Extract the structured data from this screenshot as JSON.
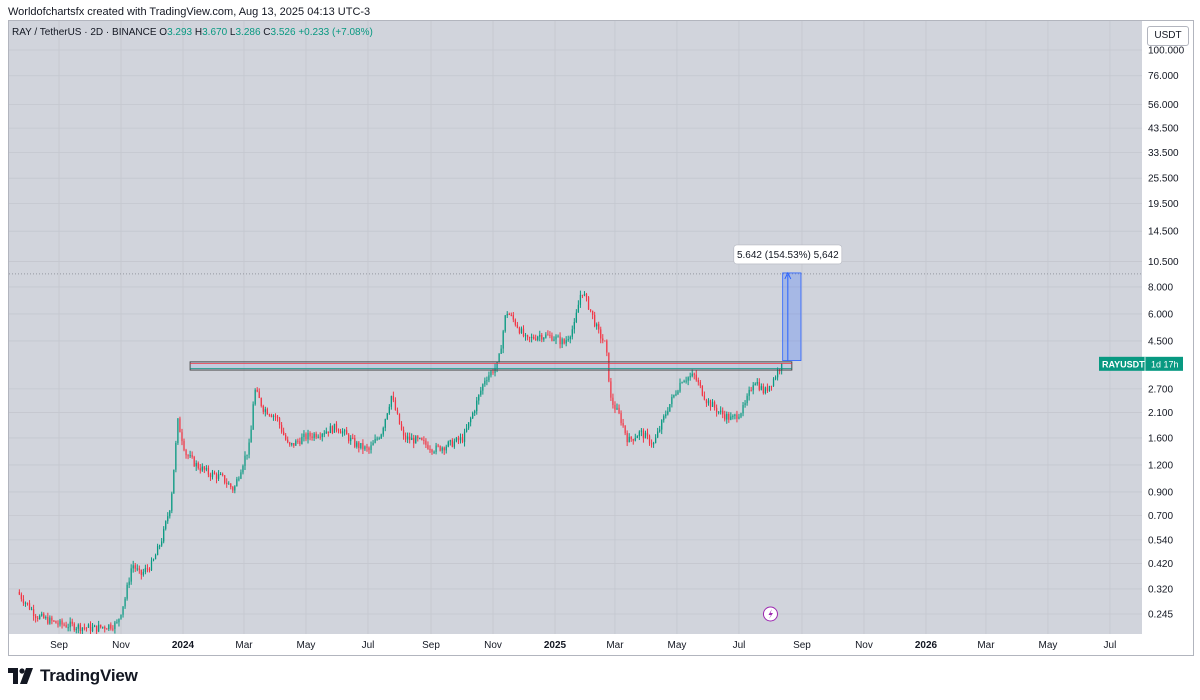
{
  "header": {
    "credit": "Worldofchartsfx created with TradingView.com, Aug 13, 2025 04:13 UTC-3"
  },
  "symbol_bar": {
    "title": "RAY / TetherUS · 2D · BINANCE",
    "o_label": "O",
    "o_value": "3.293",
    "h_label": "H",
    "h_value": "3.670",
    "l_label": "L",
    "l_value": "3.286",
    "c_label": "C",
    "c_value": "3.526",
    "change": "+0.233 (+7.08%)"
  },
  "currency": "USDT",
  "footer": {
    "brand": "TradingView"
  },
  "colors": {
    "up": "#089981",
    "down": "#f23645",
    "measure": "#2962ff",
    "background": "#d1d4dc"
  },
  "chart_data": {
    "type": "candlestick",
    "symbol": "RAYUSDT",
    "interval": "2D",
    "scale": "log",
    "ylim": [
      0.2,
      120
    ],
    "y_ticks": [
      "100.000",
      "76.000",
      "56.000",
      "43.500",
      "33.500",
      "25.500",
      "19.500",
      "14.500",
      "10.500",
      "8.000",
      "6.000",
      "4.500",
      "2.700",
      "2.100",
      "1.600",
      "1.200",
      "0.900",
      "0.700",
      "0.540",
      "0.420",
      "0.320",
      "0.245"
    ],
    "x_ticks": [
      {
        "label": "Sep",
        "date": "2023-09-01",
        "bold": false
      },
      {
        "label": "Nov",
        "date": "2023-11-01",
        "bold": false
      },
      {
        "label": "2024",
        "date": "2024-01-01",
        "bold": true
      },
      {
        "label": "Mar",
        "date": "2024-03-01",
        "bold": false
      },
      {
        "label": "May",
        "date": "2024-05-01",
        "bold": false
      },
      {
        "label": "Jul",
        "date": "2024-07-01",
        "bold": false
      },
      {
        "label": "Sep",
        "date": "2024-09-01",
        "bold": false
      },
      {
        "label": "Nov",
        "date": "2024-11-01",
        "bold": false
      },
      {
        "label": "2025",
        "date": "2025-01-01",
        "bold": true
      },
      {
        "label": "Mar",
        "date": "2025-03-01",
        "bold": false
      },
      {
        "label": "May",
        "date": "2025-05-01",
        "bold": false
      },
      {
        "label": "Jul",
        "date": "2025-07-01",
        "bold": false
      },
      {
        "label": "Sep",
        "date": "2025-09-01",
        "bold": false
      },
      {
        "label": "Nov",
        "date": "2025-11-01",
        "bold": false
      },
      {
        "label": "2026",
        "date": "2026-01-01",
        "bold": true
      },
      {
        "label": "Mar",
        "date": "2026-03-01",
        "bold": false
      },
      {
        "label": "May",
        "date": "2026-05-01",
        "bold": false
      },
      {
        "label": "Jul",
        "date": "2026-07-01",
        "bold": false
      }
    ],
    "price_path": [
      {
        "date": "2023-07-22",
        "close": 0.31
      },
      {
        "date": "2023-08-10",
        "close": 0.24
      },
      {
        "date": "2023-09-01",
        "close": 0.22
      },
      {
        "date": "2023-10-05",
        "close": 0.21
      },
      {
        "date": "2023-10-28",
        "close": 0.22
      },
      {
        "date": "2023-11-05",
        "close": 0.29
      },
      {
        "date": "2023-11-12",
        "close": 0.42
      },
      {
        "date": "2023-11-20",
        "close": 0.37
      },
      {
        "date": "2023-12-02",
        "close": 0.42
      },
      {
        "date": "2023-12-12",
        "close": 0.56
      },
      {
        "date": "2023-12-20",
        "close": 0.8
      },
      {
        "date": "2023-12-27",
        "close": 1.9
      },
      {
        "date": "2024-01-04",
        "close": 1.35
      },
      {
        "date": "2024-01-14",
        "close": 1.2
      },
      {
        "date": "2024-01-26",
        "close": 1.1
      },
      {
        "date": "2024-02-08",
        "close": 1.05
      },
      {
        "date": "2024-02-20",
        "close": 0.92
      },
      {
        "date": "2024-02-28",
        "close": 1.2
      },
      {
        "date": "2024-03-07",
        "close": 1.5
      },
      {
        "date": "2024-03-11",
        "close": 2.7
      },
      {
        "date": "2024-03-20",
        "close": 2.2
      },
      {
        "date": "2024-04-02",
        "close": 2.0
      },
      {
        "date": "2024-04-14",
        "close": 1.45
      },
      {
        "date": "2024-04-28",
        "close": 1.6
      },
      {
        "date": "2024-05-16",
        "close": 1.7
      },
      {
        "date": "2024-06-01",
        "close": 1.8
      },
      {
        "date": "2024-06-18",
        "close": 1.5
      },
      {
        "date": "2024-07-02",
        "close": 1.4
      },
      {
        "date": "2024-07-14",
        "close": 1.7
      },
      {
        "date": "2024-07-24",
        "close": 2.5
      },
      {
        "date": "2024-08-05",
        "close": 1.6
      },
      {
        "date": "2024-08-20",
        "close": 1.55
      },
      {
        "date": "2024-09-05",
        "close": 1.42
      },
      {
        "date": "2024-09-20",
        "close": 1.5
      },
      {
        "date": "2024-10-03",
        "close": 1.6
      },
      {
        "date": "2024-10-14",
        "close": 2.2
      },
      {
        "date": "2024-10-24",
        "close": 3.0
      },
      {
        "date": "2024-11-06",
        "close": 3.5
      },
      {
        "date": "2024-11-14",
        "close": 6.2
      },
      {
        "date": "2024-11-24",
        "close": 5.4
      },
      {
        "date": "2024-12-04",
        "close": 4.5
      },
      {
        "date": "2024-12-16",
        "close": 4.8
      },
      {
        "date": "2024-12-30",
        "close": 4.7
      },
      {
        "date": "2025-01-10",
        "close": 4.4
      },
      {
        "date": "2025-01-20",
        "close": 5.3
      },
      {
        "date": "2025-01-27",
        "close": 7.8
      },
      {
        "date": "2025-02-04",
        "close": 6.4
      },
      {
        "date": "2025-02-12",
        "close": 5.0
      },
      {
        "date": "2025-02-20",
        "close": 4.3
      },
      {
        "date": "2025-02-25",
        "close": 2.4
      },
      {
        "date": "2025-03-06",
        "close": 2.0
      },
      {
        "date": "2025-03-14",
        "close": 1.55
      },
      {
        "date": "2025-03-26",
        "close": 1.7
      },
      {
        "date": "2025-04-08",
        "close": 1.5
      },
      {
        "date": "2025-04-22",
        "close": 2.2
      },
      {
        "date": "2025-05-06",
        "close": 3.0
      },
      {
        "date": "2025-05-18",
        "close": 3.1
      },
      {
        "date": "2025-05-30",
        "close": 2.4
      },
      {
        "date": "2025-06-12",
        "close": 2.1
      },
      {
        "date": "2025-06-24",
        "close": 1.95
      },
      {
        "date": "2025-07-06",
        "close": 2.2
      },
      {
        "date": "2025-07-16",
        "close": 3.0
      },
      {
        "date": "2025-07-26",
        "close": 2.6
      },
      {
        "date": "2025-08-04",
        "close": 3.0
      },
      {
        "date": "2025-08-12",
        "close": 3.526
      }
    ],
    "resistance_zone": {
      "start": "2024-01-08",
      "end": "2025-08-22",
      "low": 3.3,
      "high": 3.6
    },
    "dotted_line": {
      "price": 9.2
    },
    "measure": {
      "start": "2025-08-13",
      "end": "2025-08-31",
      "from": 3.65,
      "to": 9.29,
      "label": "5.642 (154.53%) 5,642"
    },
    "last_price_label": {
      "name": "RAYUSDT",
      "countdown": "1d 17h",
      "price": 3.526
    }
  }
}
